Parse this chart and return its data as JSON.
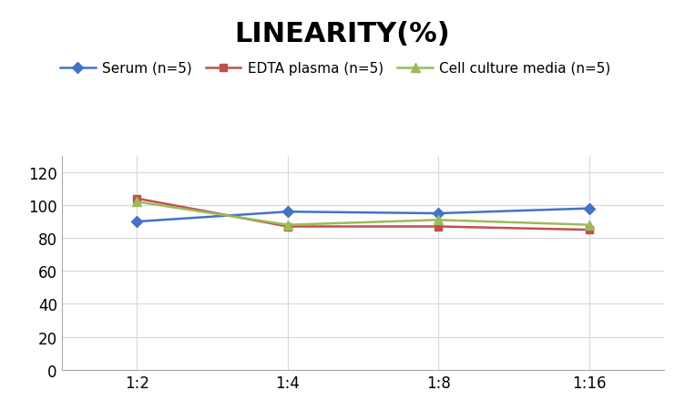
{
  "title": "LINEARITY(%)",
  "x_labels": [
    "1:2",
    "1:4",
    "1:8",
    "1:16"
  ],
  "series": [
    {
      "label": "Serum (n=5)",
      "values": [
        90,
        96,
        95,
        98
      ],
      "color": "#4472C4",
      "marker": "D",
      "markersize": 6
    },
    {
      "label": "EDTA plasma (n=5)",
      "values": [
        104,
        87,
        87,
        85
      ],
      "color": "#C0504D",
      "marker": "s",
      "markersize": 6
    },
    {
      "label": "Cell culture media (n=5)",
      "values": [
        102,
        88,
        91,
        88
      ],
      "color": "#9BBB59",
      "marker": "^",
      "markersize": 7
    }
  ],
  "ylim": [
    0,
    130
  ],
  "yticks": [
    0,
    20,
    40,
    60,
    80,
    100,
    120
  ],
  "title_fontsize": 22,
  "legend_fontsize": 11,
  "tick_fontsize": 12,
  "background_color": "#ffffff",
  "grid_color": "#d8d8d8"
}
